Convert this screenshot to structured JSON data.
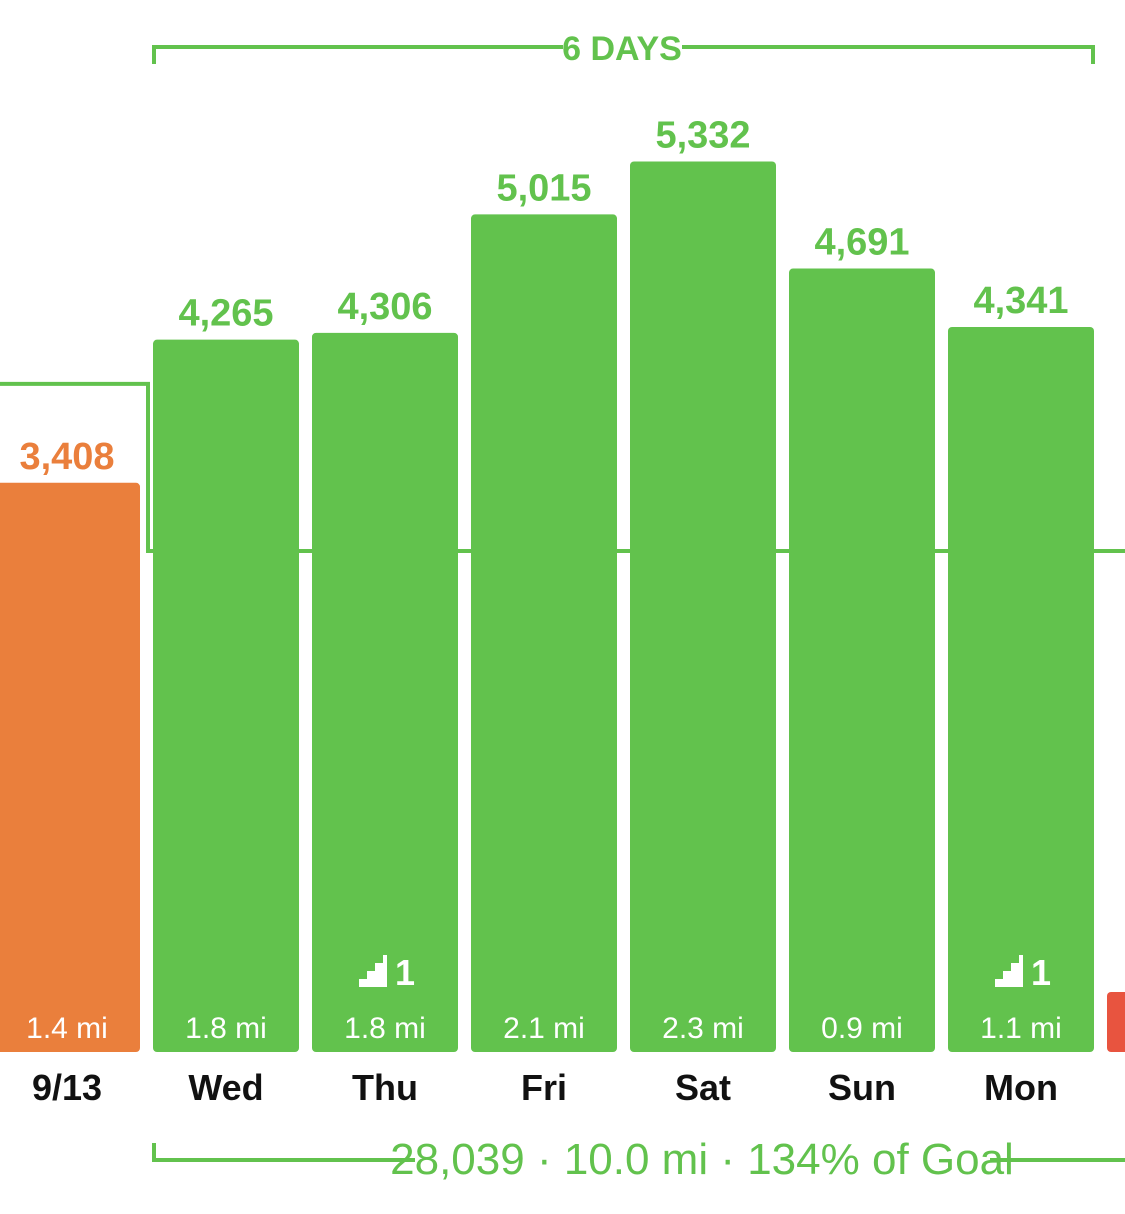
{
  "colors": {
    "green": "#62c24d",
    "orange": "#ea7f3c",
    "red": "#e8543f",
    "bar_text": "#ffffff",
    "day_label": "#111111"
  },
  "chart_data": {
    "type": "bar",
    "categories": [
      "9/13",
      "Wed",
      "Thu",
      "Fri",
      "Sat",
      "Sun",
      "Mon"
    ],
    "values": [
      3408,
      4265,
      4306,
      5015,
      5332,
      4691,
      4341
    ],
    "value_labels": [
      "3,408",
      "4,265",
      "4,306",
      "5,015",
      "5,332",
      "4,691",
      "4,341"
    ],
    "distances": [
      "1.4 mi",
      "1.8 mi",
      "1.8 mi",
      "2.1 mi",
      "2.3 mi",
      "0.9 mi",
      "1.1 mi"
    ],
    "floors": [
      null,
      null,
      "1",
      null,
      null,
      null,
      "1"
    ],
    "bar_status": [
      "below-goal",
      "goal-met",
      "goal-met",
      "goal-met",
      "goal-met",
      "goal-met",
      "goal-met"
    ],
    "goal_line": [
      4000,
      3000,
      3000,
      3000,
      3000,
      3000,
      3000
    ],
    "partial_bar_next_status": "below-goal",
    "ylim": [
      0,
      5700
    ],
    "streak_label": "6 DAYS",
    "summary_label": "28,039 · 10.0 mi · 134% of Goal",
    "floors_icon": "stairs-icon"
  }
}
